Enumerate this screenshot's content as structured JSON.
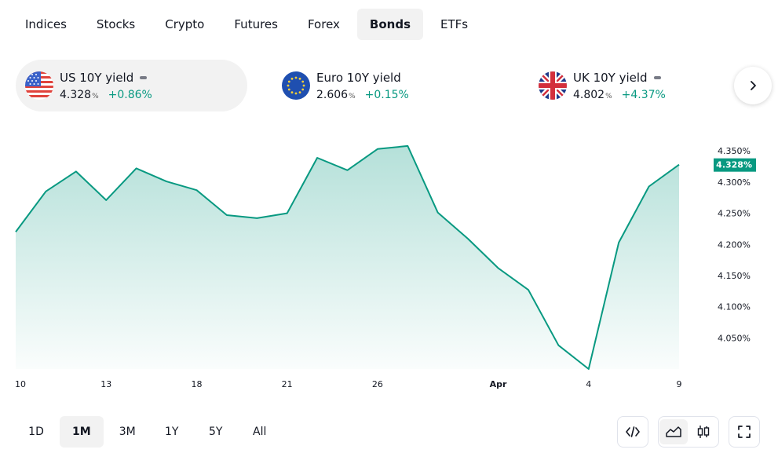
{
  "tabs": [
    "Indices",
    "Stocks",
    "Crypto",
    "Futures",
    "Forex",
    "Bonds",
    "ETFs"
  ],
  "active_tab": "Bonds",
  "cards": [
    {
      "name": "US 10Y yield",
      "value": "4.328",
      "unit": "%",
      "change": "+0.86%",
      "flag": "us-flag-icon"
    },
    {
      "name": "Euro 10Y yield",
      "value": "2.606",
      "unit": "%",
      "change": "+0.15%",
      "flag": "eu-flag-icon"
    },
    {
      "name": "UK 10Y yield",
      "value": "4.802",
      "unit": "%",
      "change": "+4.37%",
      "flag": "uk-flag-icon"
    }
  ],
  "ranges": [
    "1D",
    "1M",
    "3M",
    "1Y",
    "5Y",
    "All"
  ],
  "active_range": "1M",
  "colors": {
    "accent": "#089981",
    "positive": "#089981"
  },
  "chart_data": {
    "type": "area",
    "series": [
      {
        "name": "US 10Y yield",
        "values": [
          4.22,
          4.285,
          4.317,
          4.271,
          4.322,
          4.301,
          4.287,
          4.247,
          4.242,
          4.25,
          4.339,
          4.319,
          4.353,
          4.358,
          4.251,
          4.209,
          4.162,
          4.127,
          4.038,
          4.0,
          4.203,
          4.293,
          4.328
        ]
      }
    ],
    "x_tick_labels": [
      {
        "index": 0,
        "label": "10"
      },
      {
        "index": 3,
        "label": "13"
      },
      {
        "index": 6,
        "label": "18"
      },
      {
        "index": 9,
        "label": "21"
      },
      {
        "index": 12,
        "label": "26"
      },
      {
        "index": 16,
        "label": "Apr"
      },
      {
        "index": 19,
        "label": "4"
      },
      {
        "index": 22,
        "label": "9"
      }
    ],
    "y_ticks": [
      "4.350%",
      "4.300%",
      "4.250%",
      "4.200%",
      "4.150%",
      "4.100%",
      "4.050%"
    ],
    "y_tick_values": [
      4.35,
      4.3,
      4.25,
      4.2,
      4.15,
      4.1,
      4.05
    ],
    "ylim": [
      4.0,
      4.378
    ],
    "last_value_label": "4.328%",
    "grid": false
  }
}
